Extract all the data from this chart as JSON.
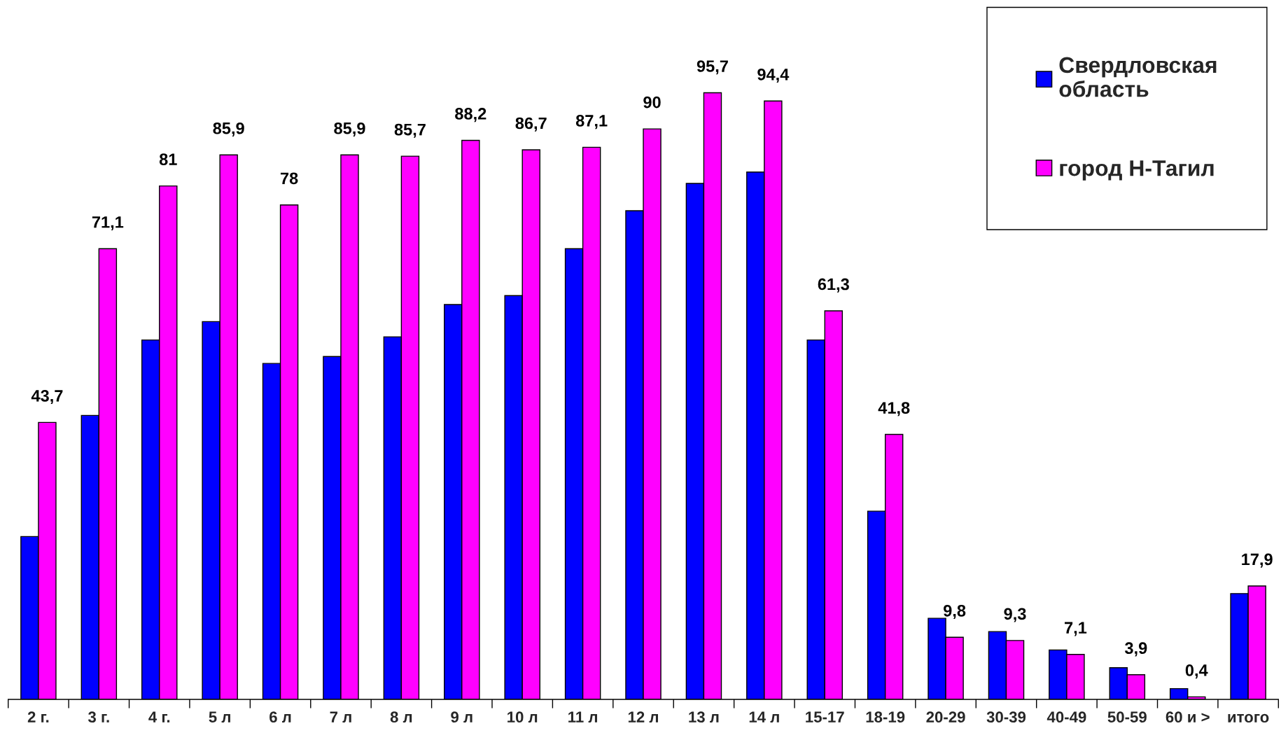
{
  "chart_data": {
    "type": "bar",
    "categories": [
      "2 г.",
      "3 г.",
      "4 г.",
      "5 л",
      "6 л",
      "7 л",
      "8 л",
      "9 л",
      "10 л",
      "11 л",
      "12 л",
      "13 л",
      "14 л",
      "15-17",
      "18-19",
      "20-29",
      "30-39",
      "40-49",
      "50-59",
      "60 и >",
      "итого"
    ],
    "series": [
      {
        "name": "Свердловская область",
        "color": "#0000ff",
        "values": [
          25.7,
          44.8,
          56.7,
          59.6,
          53.0,
          54.1,
          57.2,
          62.3,
          63.7,
          71.1,
          77.1,
          81.4,
          83.2,
          56.7,
          29.7,
          12.8,
          10.7,
          7.8,
          5.0,
          1.7,
          16.7
        ]
      },
      {
        "name": "город Н-Тагил",
        "color": "#ff00ff",
        "values": [
          43.7,
          71.1,
          81,
          85.9,
          78,
          85.9,
          85.7,
          88.2,
          86.7,
          87.1,
          90,
          95.7,
          94.4,
          61.3,
          41.8,
          9.8,
          9.3,
          7.1,
          3.9,
          0.4,
          17.9
        ],
        "value_labels": [
          "43,7",
          "71,1",
          "81",
          "85,9",
          "78",
          "85,9",
          "85,7",
          "88,2",
          "86,7",
          "87,1",
          "90",
          "95,7",
          "94,4",
          "61,3",
          "41,8",
          "9,8",
          "9,3",
          "7,1",
          "3,9",
          "0,4",
          "17,9"
        ]
      }
    ],
    "legend": "top right",
    "tick_labels": "x"
  }
}
